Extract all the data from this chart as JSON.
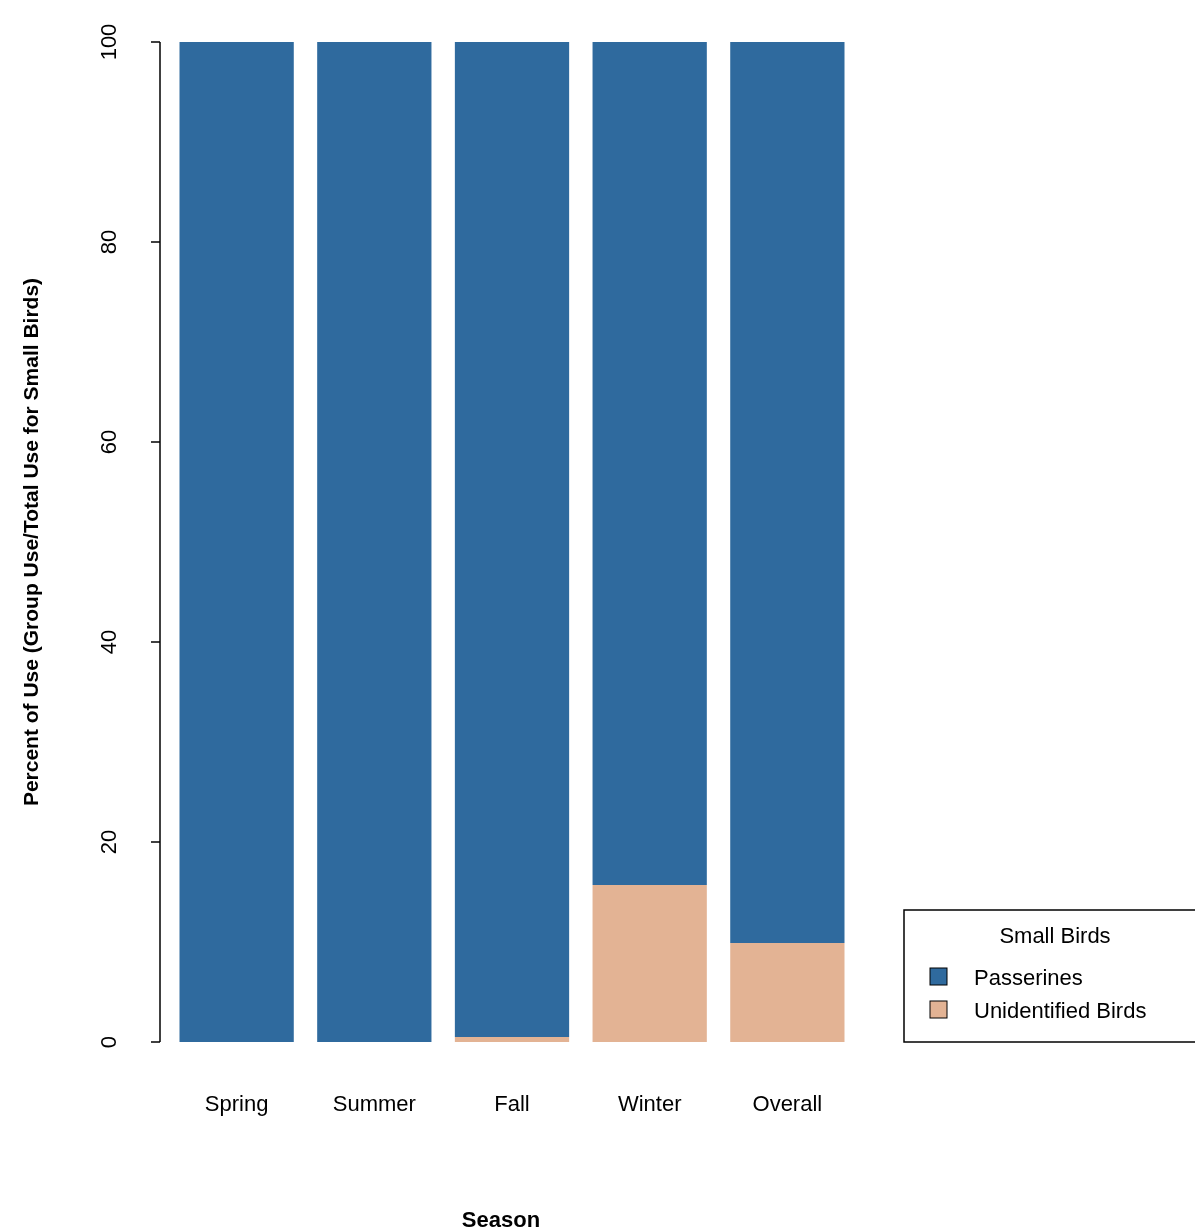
{
  "chart_data": {
    "type": "bar",
    "stacked": true,
    "xlabel": "Season",
    "ylabel": "Percent of Use (Group Use/Total Use for Small Birds)",
    "legend_title": "Small Birds",
    "legend": "right",
    "categories": [
      "Spring",
      "Summer",
      "Fall",
      "Winter",
      "Overall"
    ],
    "series": [
      {
        "name": "Unidentified Birds",
        "color": "#e3b394",
        "values": [
          0,
          0,
          0.5,
          15.7,
          9.9
        ]
      },
      {
        "name": "Passerines",
        "color": "#2f6a9e",
        "values": [
          100,
          100,
          99.5,
          84.3,
          90.1
        ]
      }
    ],
    "ylim": [
      0,
      100
    ],
    "yticks": [
      0,
      20,
      40,
      60,
      80,
      100
    ]
  }
}
